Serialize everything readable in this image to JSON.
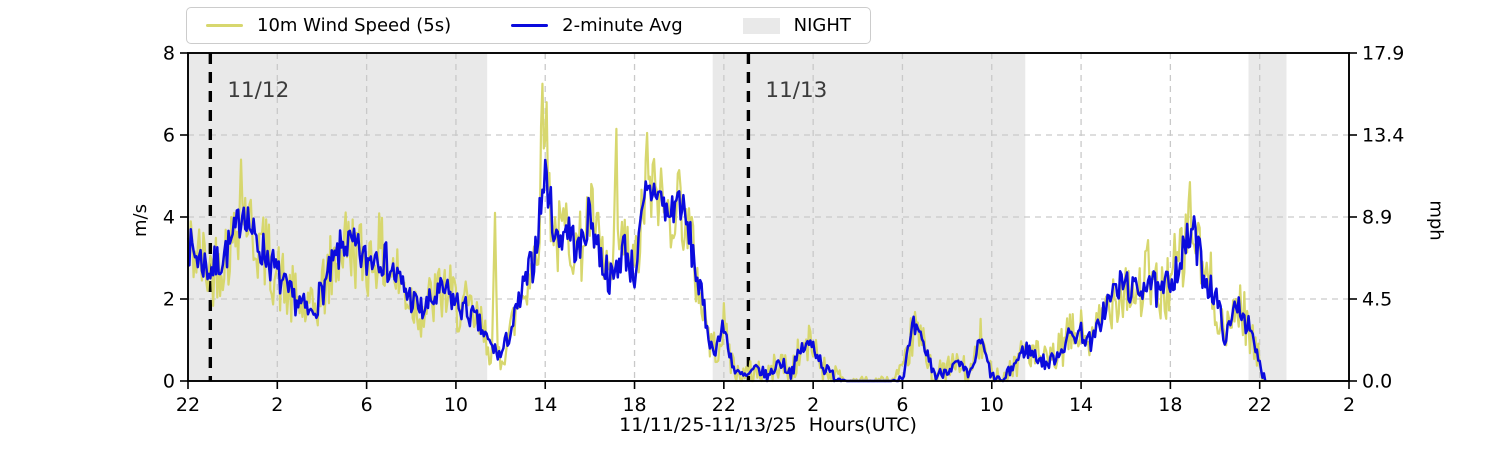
{
  "colors": {
    "raw_series": "#d7d76e",
    "avg_series": "#0b0bdd",
    "night_band": "#e9e9e9",
    "gridline": "#c9c9c9",
    "day_line": "#000000",
    "day_label_text": "#3c3c3c",
    "frame": "#000000"
  },
  "legend": {
    "items": [
      {
        "label": "10m Wind Speed (5s)",
        "swatch": "line",
        "color": "#d7d76e"
      },
      {
        "label": "2-minute Avg",
        "swatch": "line",
        "color": "#0b0bdd"
      },
      {
        "label": "NIGHT",
        "swatch": "patch",
        "color": "#e9e9e9"
      }
    ]
  },
  "axes": {
    "left": {
      "label": "m/s",
      "tick_values": [
        0,
        2,
        4,
        6,
        8
      ],
      "tick_labels": [
        "0",
        "2",
        "4",
        "6",
        "8"
      ],
      "range": [
        0,
        8
      ]
    },
    "right": {
      "label": "mph",
      "tick_values": [
        0,
        2,
        4,
        6,
        8
      ],
      "tick_labels": [
        "0.0",
        "4.5",
        "8.9",
        "13.4",
        "17.9"
      ]
    },
    "x": {
      "label": "11/11/25-11/13/25  Hours(UTC)",
      "tick_hours_offset": [
        0,
        4,
        8,
        12,
        16,
        20,
        24,
        28,
        32,
        36,
        40,
        44,
        48,
        52
      ],
      "tick_labels": [
        "22",
        "2",
        "6",
        "10",
        "14",
        "18",
        "22",
        "2",
        "6",
        "10",
        "14",
        "18",
        "22",
        "2"
      ],
      "range_hours": [
        0,
        52
      ],
      "grid_h_values": [
        2,
        4,
        6
      ]
    }
  },
  "annotations": {
    "day_lines": [
      {
        "label": "11/12",
        "hour_offset": 1.0
      },
      {
        "label": "11/13",
        "hour_offset": 25.1
      }
    ]
  },
  "chart_data": {
    "type": "line",
    "title": "",
    "xlabel": "11/11/25-11/13/25  Hours(UTC)",
    "ylabel_left": "m/s",
    "ylabel_right": "mph",
    "ylim_mps": [
      0,
      8
    ],
    "x_start": "11/11/25 22:00 UTC",
    "x_end_axis": "11/14/25 02:00 UTC",
    "x_range_hours": [
      0,
      52
    ],
    "sample_step_hours": 0.5,
    "data_end_hour": 48.25,
    "legend_position": "top-left, outside axes",
    "grid": "dashed gray, on",
    "night_bands_hours": [
      [
        0,
        13.4
      ],
      [
        23.5,
        37.5
      ],
      [
        47.5,
        49.2
      ]
    ],
    "series": [
      {
        "name": "10m Wind Speed (5s)",
        "color": "#d7d76e",
        "character": "high-frequency raw trace enveloping the 2-minute average",
        "typical_spread_mps": 0.85,
        "max_mps": 7.25,
        "max_hour_offset": 15.8
      },
      {
        "name": "2-minute Avg",
        "color": "#0b0bdd",
        "values_mps": [
          3.3,
          3.0,
          2.7,
          3.0,
          3.4,
          4.3,
          3.4,
          3.1,
          2.6,
          2.1,
          1.9,
          1.6,
          2.2,
          2.8,
          3.4,
          3.2,
          2.9,
          3.2,
          2.8,
          2.4,
          2.0,
          1.7,
          2.0,
          2.2,
          1.9,
          1.7,
          1.4,
          0.9,
          0.6,
          1.3,
          2.2,
          3.0,
          5.1,
          3.4,
          3.8,
          3.1,
          4.1,
          3.0,
          2.4,
          3.3,
          2.6,
          4.5,
          4.7,
          4.0,
          4.5,
          3.4,
          2.0,
          0.7,
          1.3,
          0.2,
          0.1,
          0.3,
          0.1,
          0.5,
          0.2,
          0.8,
          0.9,
          0.3,
          0.1,
          0.0,
          0.0,
          0.0,
          0.0,
          0.0,
          0.1,
          1.3,
          0.8,
          0.1,
          0.3,
          0.4,
          0.1,
          1.0,
          0.1,
          0.0,
          0.4,
          0.8,
          0.6,
          0.4,
          0.7,
          1.1,
          1.2,
          0.9,
          1.7,
          2.2,
          2.4,
          2.1,
          2.6,
          2.0,
          2.5,
          3.0,
          3.7,
          2.6,
          2.1,
          1.0,
          2.0,
          1.3,
          0.4
        ]
      }
    ],
    "gust_peaks": [
      {
        "hour_offset": 2.35,
        "mps": 5.4
      },
      {
        "hour_offset": 13.75,
        "mps": 4.1
      },
      {
        "hour_offset": 15.85,
        "mps": 7.25
      },
      {
        "hour_offset": 16.05,
        "mps": 6.8
      },
      {
        "hour_offset": 19.2,
        "mps": 6.15
      },
      {
        "hour_offset": 20.55,
        "mps": 6.05
      },
      {
        "hour_offset": 44.9,
        "mps": 4.85
      }
    ]
  }
}
